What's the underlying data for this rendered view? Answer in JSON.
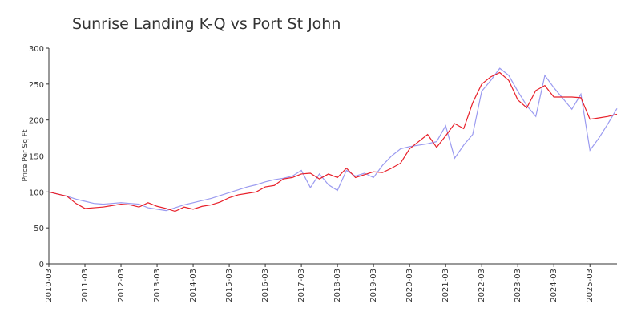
{
  "chart_data": {
    "type": "line",
    "title": "Sunrise Landing K-Q vs Port St John",
    "y_label": "Price Per Sq Ft",
    "x": [
      "2010-03",
      "2010-06",
      "2010-09",
      "2010-12",
      "2011-03",
      "2011-06",
      "2011-09",
      "2011-12",
      "2012-03",
      "2012-06",
      "2012-09",
      "2012-12",
      "2013-03",
      "2013-06",
      "2013-09",
      "2013-12",
      "2014-03",
      "2014-06",
      "2014-09",
      "2014-12",
      "2015-03",
      "2015-06",
      "2015-09",
      "2015-12",
      "2016-03",
      "2016-06",
      "2016-09",
      "2016-12",
      "2017-03",
      "2017-06",
      "2017-09",
      "2017-12",
      "2018-03",
      "2018-06",
      "2018-09",
      "2018-12",
      "2019-03",
      "2019-06",
      "2019-09",
      "2019-12",
      "2020-03",
      "2020-06",
      "2020-09",
      "2020-12",
      "2021-03",
      "2021-06",
      "2021-09",
      "2021-12",
      "2022-03",
      "2022-06",
      "2022-09",
      "2022-12",
      "2023-03",
      "2023-06",
      "2023-09",
      "2023-12",
      "2024-03",
      "2024-06",
      "2024-09",
      "2024-12",
      "2025-03",
      "2025-06",
      "2025-09",
      "2025-12"
    ],
    "series": [
      {
        "color": "#9b9bf0",
        "values": [
          100,
          97,
          94,
          90,
          87,
          84,
          83,
          84,
          85,
          84,
          83,
          78,
          76,
          74,
          78,
          82,
          85,
          88,
          91,
          95,
          99,
          103,
          107,
          110,
          114,
          117,
          119,
          122,
          130,
          106,
          125,
          110,
          102,
          130,
          122,
          126,
          120,
          137,
          150,
          160,
          163,
          165,
          167,
          170,
          192,
          147,
          165,
          180,
          240,
          255,
          272,
          262,
          240,
          220,
          205,
          262,
          245,
          230,
          215,
          236,
          158,
          175,
          195,
          216
        ]
      },
      {
        "color": "#e8202a",
        "values": [
          100,
          97,
          94,
          84,
          77,
          78,
          79,
          81,
          83,
          82,
          79,
          85,
          80,
          77,
          73,
          79,
          76,
          80,
          82,
          86,
          92,
          96,
          98,
          100,
          107,
          109,
          118,
          120,
          125,
          126,
          118,
          125,
          120,
          133,
          120,
          124,
          128,
          127,
          133,
          140,
          160,
          170,
          180,
          162,
          178,
          195,
          188,
          224,
          250,
          260,
          266,
          255,
          228,
          217,
          241,
          248,
          232,
          232,
          232,
          231,
          201,
          203,
          205,
          208
        ]
      }
    ],
    "xlim": [
      "2010-03",
      "2025-12"
    ],
    "xticks": [
      "2010-03",
      "2011-03",
      "2012-03",
      "2013-03",
      "2014-03",
      "2015-03",
      "2016-03",
      "2017-03",
      "2018-03",
      "2019-03",
      "2020-03",
      "2021-03",
      "2022-03",
      "2023-03",
      "2024-03",
      "2025-03"
    ],
    "ylim": [
      0,
      300
    ],
    "yticks": [
      0,
      50,
      100,
      150,
      200,
      250,
      300
    ]
  }
}
